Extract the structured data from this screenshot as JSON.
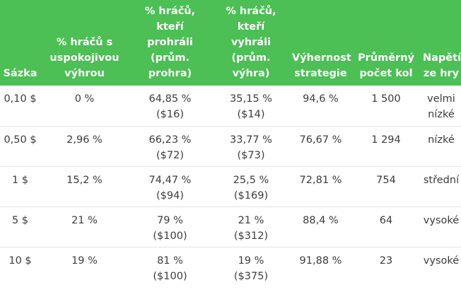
{
  "table": {
    "headers": [
      [
        "Sázka"
      ],
      [
        "% hráčů s",
        "uspokojivou",
        "výhrou"
      ],
      [
        "% hráčů,",
        "kteří",
        "prohráli",
        "(prům.",
        "prohra)"
      ],
      [
        "% hráčů,",
        "kteří",
        "vyhráli",
        "(prům.",
        "výhra)"
      ],
      [
        "Výhernost",
        "strategie"
      ],
      [
        "Průměrný",
        "počet kol"
      ],
      [
        "Napětí",
        "ze hry"
      ]
    ],
    "rows": [
      [
        [
          "0,10 $"
        ],
        [
          "0 %"
        ],
        [
          "64,85 %",
          "($16)"
        ],
        [
          "35,15 %",
          "($14)"
        ],
        [
          "94,6 %"
        ],
        [
          "1 500"
        ],
        [
          "velmi",
          "nízké"
        ]
      ],
      [
        [
          "0,50 $"
        ],
        [
          "2,96 %"
        ],
        [
          "66,23 %",
          "($72)"
        ],
        [
          "33,77 %",
          "($73)"
        ],
        [
          "76,67 %"
        ],
        [
          "1 294"
        ],
        [
          "nízké"
        ]
      ],
      [
        [
          "1 $"
        ],
        [
          "15,2 %"
        ],
        [
          "74,47 %",
          "($94)"
        ],
        [
          "25,5 %",
          "($169)"
        ],
        [
          "72,81 %"
        ],
        [
          "754"
        ],
        [
          "střední"
        ]
      ],
      [
        [
          "5 $"
        ],
        [
          "21 %"
        ],
        [
          "79 %",
          "($100)"
        ],
        [
          "21 %",
          "($312)"
        ],
        [
          "88,4 %"
        ],
        [
          "64"
        ],
        [
          "vysoké"
        ]
      ],
      [
        [
          "10 $"
        ],
        [
          "19 %"
        ],
        [
          "81 %",
          "($100)"
        ],
        [
          "19 %",
          "($375)"
        ],
        [
          "91,88 %"
        ],
        [
          "23"
        ],
        [
          "vysoké"
        ]
      ]
    ]
  },
  "colors": {
    "header_bg": "#4cbf55",
    "header_text": "#ffffff",
    "body_text": "#3c3c3c",
    "divider": "#e4e4e4"
  }
}
